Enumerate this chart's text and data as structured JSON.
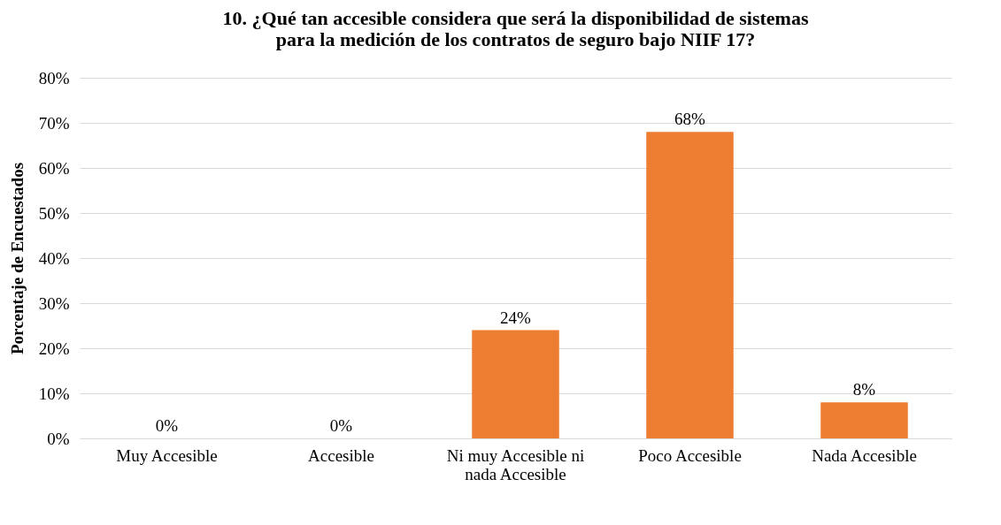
{
  "chart_data": {
    "type": "bar",
    "title": "10. ¿Qué tan accesible considera que será la disponibilidad de sistemas para la medición de los contratos de seguro bajo NIIF 17?",
    "ylabel": "Porcentaje de Encuestados",
    "categories": [
      "Muy Accesible",
      "Accesible",
      "Ni muy Accesible ni nada Accesible",
      "Poco Accesible",
      "Nada Accesible"
    ],
    "values": [
      0,
      0,
      24,
      68,
      8
    ],
    "value_labels": [
      "0%",
      "0%",
      "24%",
      "68%",
      "8%"
    ],
    "color": "#ed7d31",
    "ylim": [
      0,
      80
    ],
    "yticks": [
      {
        "value": 0,
        "label": "0%"
      },
      {
        "value": 10,
        "label": "10%"
      },
      {
        "value": 20,
        "label": "20%"
      },
      {
        "value": 30,
        "label": "30%"
      },
      {
        "value": 40,
        "label": "40%"
      },
      {
        "value": 50,
        "label": "50%"
      },
      {
        "value": 60,
        "label": "60%"
      },
      {
        "value": 70,
        "label": "70%"
      },
      {
        "value": 80,
        "label": "80%"
      }
    ],
    "grid": "y"
  }
}
